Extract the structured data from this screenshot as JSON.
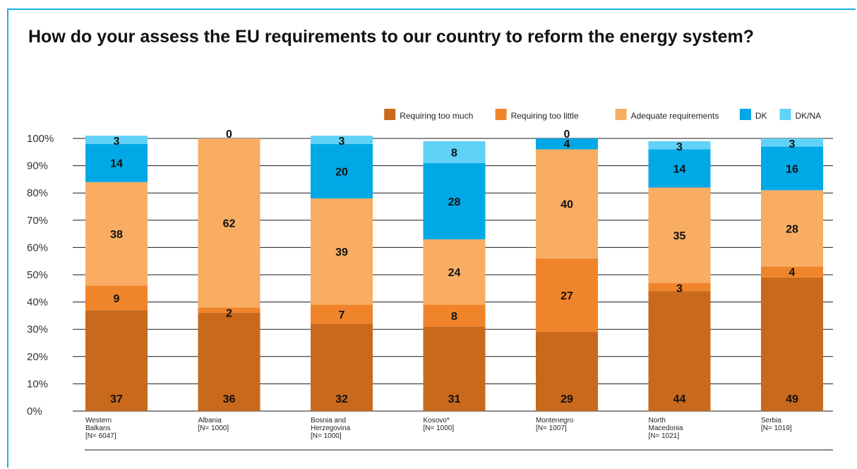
{
  "title": "How do your assess the EU requirements to our country to reform the energy system?",
  "chart_data": {
    "type": "bar",
    "stacked": true,
    "categories": [
      [
        "Western",
        "Balkans",
        "[N= 6047]"
      ],
      [
        "Albania",
        "[N= 1000]"
      ],
      [
        "Bosnia and",
        "Herzegovina",
        "[N= 1000]"
      ],
      [
        "Kosovo*",
        "[N= 1000]"
      ],
      [
        "Montenegro",
        "[N= 1007]"
      ],
      [
        "North",
        "Macedonia",
        "[N= 1021]"
      ],
      [
        "Serbia",
        "[N= 1019]"
      ]
    ],
    "series": [
      {
        "name": "Requiring too much",
        "color": "#c8691c",
        "values": [
          37,
          36,
          32,
          31,
          29,
          44,
          49
        ]
      },
      {
        "name": "Requiring too little",
        "color": "#f0842a",
        "values": [
          9,
          2,
          7,
          8,
          27,
          3,
          4
        ]
      },
      {
        "name": "Adequate requirements",
        "color": "#f8ad62",
        "values": [
          38,
          62,
          39,
          24,
          40,
          35,
          28
        ]
      },
      {
        "name": "DK",
        "color": "#00a9e5",
        "values": [
          14,
          0,
          20,
          28,
          4,
          14,
          16
        ]
      },
      {
        "name": "DK/NA",
        "color": "#61d2f7",
        "values": [
          3,
          0,
          3,
          8,
          0,
          3,
          3
        ]
      }
    ],
    "hidden_labels": [
      [],
      [
        3
      ],
      [],
      [],
      [],
      [],
      []
    ],
    "yticks": [
      "0%",
      "10%",
      "20%",
      "30%",
      "40%",
      "50%",
      "60%",
      "70%",
      "80%",
      "90%",
      "100%"
    ],
    "ylim": [
      0,
      100
    ],
    "legend_position": "top-right"
  }
}
